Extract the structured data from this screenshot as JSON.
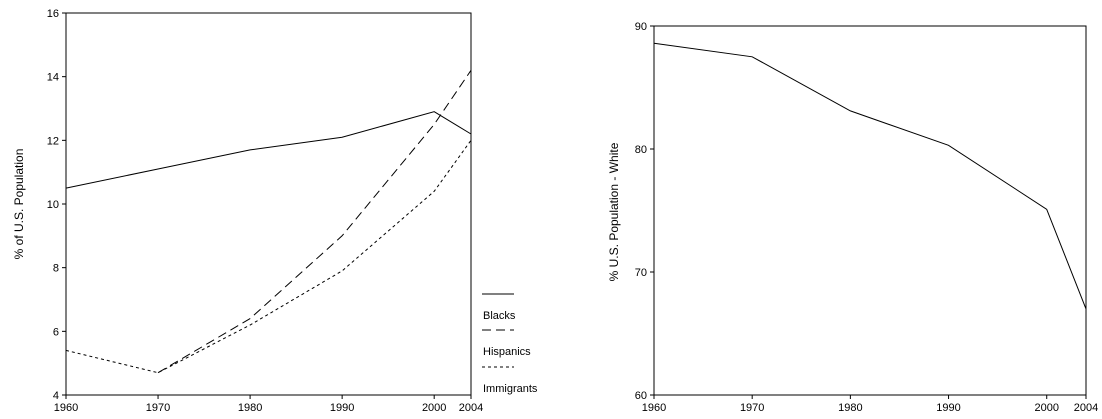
{
  "chart_data": [
    {
      "type": "line",
      "title": "",
      "xlabel": "",
      "ylabel": "% of U.S. Population",
      "x": [
        "1960",
        "1970",
        "1980",
        "1990",
        "2000",
        "2004"
      ],
      "ylim": [
        4,
        16
      ],
      "yticks": [
        "4",
        "6",
        "8",
        "10",
        "12",
        "14",
        "16"
      ],
      "grid": false,
      "legend_position": "bottom-right, outside plot",
      "series": [
        {
          "name": "Blacks",
          "values": [
            10.5,
            11.1,
            11.7,
            12.1,
            12.9,
            12.2
          ],
          "line_style": "solid"
        },
        {
          "name": "Hispanics",
          "values": [
            null,
            4.7,
            6.4,
            9.0,
            12.5,
            14.2
          ],
          "line_style": "dashed"
        },
        {
          "name": "Immigrants",
          "values": [
            5.4,
            4.7,
            6.2,
            7.9,
            10.4,
            12.0
          ],
          "line_style": "dotted"
        }
      ]
    },
    {
      "type": "line",
      "title": "",
      "xlabel": "",
      "ylabel": "% U.S. Population - White",
      "x": [
        "1960",
        "1970",
        "1980",
        "1990",
        "2000",
        "2004"
      ],
      "ylim": [
        60,
        90
      ],
      "yticks": [
        "60",
        "70",
        "80",
        "90"
      ],
      "grid": false,
      "series": [
        {
          "name": "",
          "values": [
            88.6,
            87.5,
            83.1,
            80.3,
            75.1,
            67.0
          ],
          "line_style": "solid"
        }
      ]
    }
  ],
  "colors": {
    "line": "#000000",
    "background": "#ffffff"
  }
}
